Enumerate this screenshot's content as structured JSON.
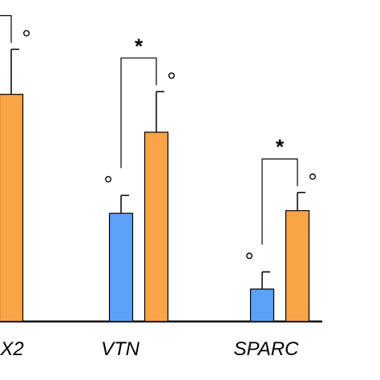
{
  "chart_data": {
    "type": "bar",
    "categories": [
      "X2",
      "VTN",
      "SPARC"
    ],
    "series": [
      {
        "values": [
          null,
          120,
          36
        ],
        "errors": [
          null,
          20,
          19
        ],
        "color": "#5aa2f8"
      },
      {
        "values": [
          252,
          210,
          123
        ],
        "errors": [
          50,
          45,
          20
        ],
        "color": "#f9a446"
      }
    ],
    "ylim": [
      0,
      330
    ],
    "grid": false,
    "legend": "none",
    "significance": [
      {
        "category": "X2",
        "marker": "*"
      },
      {
        "category": "VTN",
        "marker": "*"
      },
      {
        "category": "SPARC",
        "marker": "*"
      }
    ],
    "point_markers": [
      {
        "category": "X2",
        "series": 1,
        "marker": "°"
      },
      {
        "category": "VTN",
        "series": 0,
        "marker": "°"
      },
      {
        "category": "VTN",
        "series": 1,
        "marker": "°"
      },
      {
        "category": "SPARC",
        "series": 0,
        "marker": "°"
      },
      {
        "category": "SPARC",
        "series": 1,
        "marker": "°"
      }
    ]
  }
}
